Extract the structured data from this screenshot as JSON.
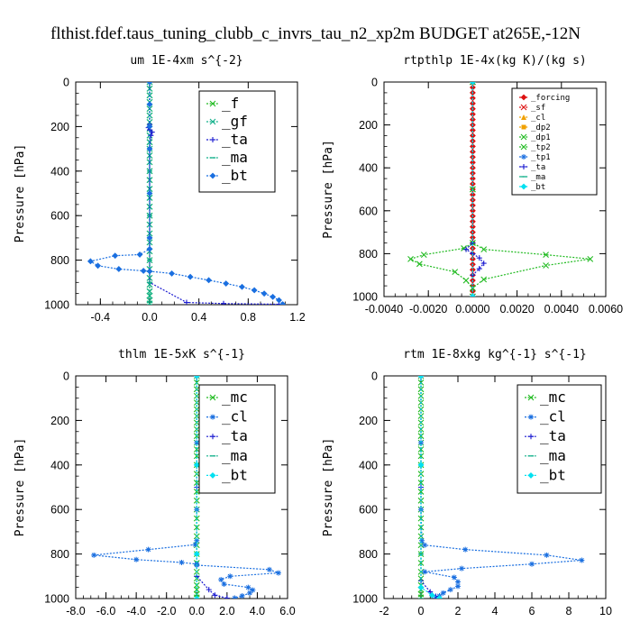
{
  "figure_title": "flthist.fdef.taus_tuning_clubb_c_invrs_tau_n2_xp2m  BUDGET at265E,-12N",
  "colors": {
    "green": "#22bb22",
    "teal": "#12b08a",
    "blue": "#1a6fe0",
    "navy": "#1a1ad0",
    "red": "#dd1111",
    "orange": "#f0a000",
    "cyan": "#00e0f0",
    "dark": "#222222"
  },
  "chart_data": [
    {
      "type": "line",
      "title": "um  1E-4xm s^{-2}",
      "ylabel": "Pressure [hPa]",
      "xlim": [
        -0.6,
        1.2
      ],
      "ylim": [
        1000,
        0
      ],
      "xticks": [
        -0.4,
        0.0,
        0.4,
        0.8,
        1.2
      ],
      "xtick_labels": [
        "-0.4",
        "0.0",
        "0.4",
        "0.8",
        "1.2"
      ],
      "yticks": [
        0,
        200,
        400,
        600,
        800,
        1000
      ],
      "ytick_labels": [
        "0",
        "200",
        "400",
        "600",
        "800",
        "1000"
      ],
      "legend_position": "top-right",
      "legend_style": "big",
      "series": [
        {
          "name": "_f",
          "color": "green",
          "marker": "x",
          "x": [
            0,
            0,
            0,
            0,
            0,
            0,
            0,
            0,
            0,
            0,
            0,
            0,
            0,
            0,
            0,
            0,
            0,
            0,
            0,
            0,
            0,
            0,
            0,
            0,
            0,
            0,
            0,
            0,
            0,
            0,
            0
          ],
          "y": [
            0,
            30,
            60,
            90,
            120,
            150,
            180,
            210,
            240,
            270,
            300,
            330,
            360,
            400,
            440,
            480,
            520,
            560,
            600,
            640,
            680,
            720,
            760,
            800,
            840,
            880,
            910,
            940,
            960,
            980,
            995
          ]
        },
        {
          "name": "_gf",
          "color": "teal",
          "marker": "x",
          "x": [
            0,
            0,
            0,
            0,
            0,
            0,
            0,
            0,
            0,
            0,
            0,
            0,
            0,
            0,
            0,
            0,
            0,
            0,
            0,
            0,
            0,
            0,
            0,
            0,
            0,
            0,
            0,
            0,
            0,
            0,
            0
          ],
          "y": [
            0,
            30,
            60,
            90,
            120,
            150,
            180,
            210,
            240,
            270,
            300,
            330,
            360,
            400,
            440,
            480,
            520,
            560,
            600,
            640,
            680,
            720,
            760,
            800,
            840,
            880,
            910,
            940,
            960,
            980,
            995
          ]
        },
        {
          "name": "_ta",
          "color": "navy",
          "marker": "+",
          "x": [
            0,
            0,
            0,
            -0.01,
            0,
            0.02,
            0.01,
            0,
            0,
            0,
            0,
            0.3,
            0.6,
            1.05
          ],
          "y": [
            0,
            100,
            190,
            205,
            215,
            225,
            240,
            300,
            500,
            700,
            900,
            990,
            995,
            998
          ]
        },
        {
          "name": "_ma",
          "color": "teal",
          "marker": "dash",
          "x": [
            0,
            0,
            0,
            0,
            0,
            0,
            0
          ],
          "y": [
            0,
            200,
            400,
            600,
            800,
            900,
            1000
          ]
        },
        {
          "name": "_bt",
          "color": "blue",
          "marker": "diamond",
          "x": [
            0.0,
            0.0,
            0.0,
            0.0,
            0.0,
            0.0,
            0.0,
            -0.08,
            -0.28,
            -0.48,
            -0.42,
            -0.25,
            -0.05,
            0.0,
            0.18,
            0.33,
            0.48,
            0.62,
            0.75,
            0.85,
            0.93,
            1.0,
            1.05,
            1.08
          ],
          "y": [
            0,
            100,
            200,
            300,
            500,
            700,
            750,
            775,
            780,
            805,
            825,
            840,
            848,
            850,
            860,
            875,
            890,
            905,
            920,
            935,
            950,
            965,
            980,
            998
          ]
        }
      ]
    },
    {
      "type": "line",
      "title": "rtpthlp  1E-4x(kg K)/(kg s)",
      "ylabel": "Pressure [hPa]",
      "xlim": [
        -0.004,
        0.006
      ],
      "ylim": [
        1000,
        0
      ],
      "xticks": [
        -0.004,
        -0.002,
        0.0,
        0.002,
        0.004,
        0.006
      ],
      "xtick_labels": [
        "-0.0040",
        "-0.0020",
        "0.0000",
        "0.0020",
        "0.0040",
        "0.0060"
      ],
      "yticks": [
        0,
        200,
        400,
        600,
        800,
        1000
      ],
      "ytick_labels": [
        "0",
        "200",
        "400",
        "600",
        "800",
        "1000"
      ],
      "legend_position": "top-right",
      "legend_style": "small",
      "series": [
        {
          "name": "_forcing",
          "color": "red",
          "marker": "diamond",
          "x": [
            0,
            0,
            0,
            0,
            0,
            0,
            0,
            0,
            0,
            0,
            0,
            0,
            0,
            0,
            0,
            0,
            0,
            0,
            0,
            0,
            0,
            0,
            0,
            0,
            0,
            0,
            0,
            0,
            0,
            0,
            0,
            0,
            0,
            0,
            0,
            0,
            0,
            0,
            0,
            0,
            0
          ],
          "y": [
            0,
            25,
            50,
            75,
            100,
            125,
            150,
            175,
            200,
            225,
            250,
            275,
            300,
            325,
            350,
            375,
            400,
            425,
            450,
            475,
            500,
            525,
            550,
            575,
            600,
            625,
            650,
            675,
            700,
            725,
            750,
            775,
            800,
            825,
            850,
            875,
            900,
            925,
            950,
            975,
            1000
          ]
        },
        {
          "name": "_sf",
          "color": "red",
          "marker": "x",
          "x": [
            0,
            0
          ],
          "y": [
            0,
            1000
          ]
        },
        {
          "name": "_cl",
          "color": "orange",
          "marker": "triangle",
          "x": [
            0,
            0
          ],
          "y": [
            0,
            1000
          ]
        },
        {
          "name": "_dp2",
          "color": "orange",
          "marker": "square",
          "x": [
            0,
            0
          ],
          "y": [
            0,
            1000
          ]
        },
        {
          "name": "_dp1",
          "color": "green",
          "marker": "x",
          "x": [
            0,
            0,
            0,
            0.0005,
            0.0033,
            0.0053,
            0.0033,
            0.0005,
            0,
            0
          ],
          "y": [
            0,
            500,
            750,
            780,
            805,
            825,
            855,
            920,
            960,
            1000
          ]
        },
        {
          "name": "_tp2",
          "color": "green",
          "marker": "x",
          "x": [
            0,
            0,
            0,
            -0.0004,
            -0.0022,
            -0.0028,
            -0.0024,
            -0.0008,
            -0.0003,
            0,
            0
          ],
          "y": [
            0,
            500,
            750,
            775,
            805,
            825,
            848,
            885,
            925,
            960,
            1000
          ]
        },
        {
          "name": "_tp1",
          "color": "blue",
          "marker": "star",
          "x": [
            0,
            0
          ],
          "y": [
            0,
            1000
          ]
        },
        {
          "name": "_ta",
          "color": "navy",
          "marker": "+",
          "x": [
            0,
            0,
            -0.0003,
            0,
            0.0003,
            0.0005,
            0.0003,
            0,
            0
          ],
          "y": [
            0,
            750,
            780,
            800,
            820,
            845,
            870,
            900,
            1000
          ]
        },
        {
          "name": "_ma",
          "color": "teal",
          "marker": "dash",
          "x": [
            0,
            0
          ],
          "y": [
            0,
            1000
          ]
        },
        {
          "name": "_bt",
          "color": "cyan",
          "marker": "diamond",
          "x": [
            0,
            0
          ],
          "y": [
            0,
            1000
          ]
        }
      ]
    },
    {
      "type": "line",
      "title": "thlm  1E-5xK s^{-1}",
      "ylabel": "Pressure [hPa]",
      "xlim": [
        -8,
        6
      ],
      "ylim": [
        1000,
        0
      ],
      "xticks": [
        -8,
        -6,
        -4,
        -2,
        0,
        2,
        4,
        6
      ],
      "xtick_labels": [
        "-8.0",
        "-6.0",
        "-4.0",
        "-2.0",
        "0.0",
        "2.0",
        "4.0",
        "6.0"
      ],
      "yticks": [
        0,
        200,
        400,
        600,
        800,
        1000
      ],
      "ytick_labels": [
        "0",
        "200",
        "400",
        "600",
        "800",
        "1000"
      ],
      "legend_position": "top-right",
      "legend_style": "big",
      "series": [
        {
          "name": "_mc",
          "color": "green",
          "marker": "x",
          "x": [
            0,
            0,
            0,
            0,
            0,
            0,
            0,
            0,
            0,
            0,
            0,
            0,
            0,
            0,
            0,
            0,
            0,
            0,
            0,
            0,
            0,
            0,
            0,
            0,
            0,
            0,
            0,
            0,
            0,
            0,
            0
          ],
          "y": [
            0,
            30,
            60,
            90,
            120,
            150,
            180,
            210,
            240,
            270,
            300,
            330,
            360,
            400,
            440,
            480,
            520,
            560,
            600,
            640,
            680,
            720,
            760,
            800,
            840,
            880,
            910,
            940,
            960,
            980,
            995
          ]
        },
        {
          "name": "_cl",
          "color": "blue",
          "marker": "star",
          "x": [
            0,
            0,
            0,
            0,
            -0.1,
            -3.2,
            -6.8,
            -4.0,
            -1.0,
            0,
            0,
            4.8,
            5.4,
            2.2,
            1.6,
            1.8,
            3.4,
            3.7,
            3.5,
            3.0,
            2.5
          ],
          "y": [
            0,
            300,
            600,
            740,
            758,
            780,
            805,
            825,
            838,
            845,
            850,
            870,
            885,
            900,
            915,
            935,
            950,
            962,
            975,
            988,
            998
          ]
        },
        {
          "name": "_ta",
          "color": "navy",
          "marker": "+",
          "x": [
            0,
            0,
            0,
            0.8,
            1.2,
            2.0
          ],
          "y": [
            0,
            500,
            900,
            960,
            985,
            998
          ]
        },
        {
          "name": "_ma",
          "color": "teal",
          "marker": "dash",
          "x": [
            0,
            0,
            0,
            0
          ],
          "y": [
            0,
            400,
            800,
            1000
          ]
        },
        {
          "name": "_bt",
          "color": "cyan",
          "marker": "diamond",
          "x": [
            0,
            0,
            0,
            0
          ],
          "y": [
            0,
            400,
            800,
            1000
          ]
        }
      ]
    },
    {
      "type": "line",
      "title": "rtm  1E-8xkg kg^{-1} s^{-1}",
      "ylabel": "Pressure [hPa]",
      "xlim": [
        -2,
        10
      ],
      "ylim": [
        1000,
        0
      ],
      "xticks": [
        -2,
        0,
        2,
        4,
        6,
        8,
        10
      ],
      "xtick_labels": [
        "-2",
        "0",
        "2",
        "4",
        "6",
        "8",
        "10"
      ],
      "yticks": [
        0,
        200,
        400,
        600,
        800,
        1000
      ],
      "ytick_labels": [
        "0",
        "200",
        "400",
        "600",
        "800",
        "1000"
      ],
      "legend_position": "top-right",
      "legend_style": "big",
      "series": [
        {
          "name": "_mc",
          "color": "green",
          "marker": "x",
          "x": [
            0,
            0,
            0,
            0,
            0,
            0,
            0,
            0,
            0,
            0,
            0,
            0,
            0,
            0,
            0,
            0,
            0,
            0,
            0,
            0,
            0,
            0,
            0,
            0,
            0,
            0,
            0,
            0,
            0,
            0,
            0
          ],
          "y": [
            0,
            30,
            60,
            90,
            120,
            150,
            180,
            210,
            240,
            270,
            300,
            330,
            360,
            400,
            440,
            480,
            520,
            560,
            600,
            640,
            680,
            720,
            760,
            800,
            840,
            880,
            910,
            940,
            960,
            980,
            995
          ]
        },
        {
          "name": "_cl",
          "color": "blue",
          "marker": "star",
          "x": [
            0,
            0,
            0,
            0.05,
            0.2,
            2.4,
            6.8,
            8.7,
            6.0,
            2.2,
            0.2,
            1.8,
            2.0,
            2.0,
            1.6,
            1.2,
            1.0,
            0.8
          ],
          "y": [
            0,
            300,
            600,
            740,
            760,
            780,
            805,
            828,
            845,
            865,
            880,
            905,
            925,
            945,
            960,
            975,
            988,
            998
          ]
        },
        {
          "name": "_ta",
          "color": "navy",
          "marker": "+",
          "x": [
            0,
            0,
            0,
            0.5,
            0.8,
            1.0
          ],
          "y": [
            0,
            500,
            920,
            970,
            990,
            998
          ]
        },
        {
          "name": "_ma",
          "color": "teal",
          "marker": "dash",
          "x": [
            0,
            0,
            0,
            0
          ],
          "y": [
            0,
            400,
            800,
            1000
          ]
        },
        {
          "name": "_bt",
          "color": "cyan",
          "marker": "diamond",
          "x": [
            0,
            0,
            0,
            0.6,
            1.0
          ],
          "y": [
            0,
            400,
            950,
            985,
            998
          ]
        }
      ]
    }
  ]
}
